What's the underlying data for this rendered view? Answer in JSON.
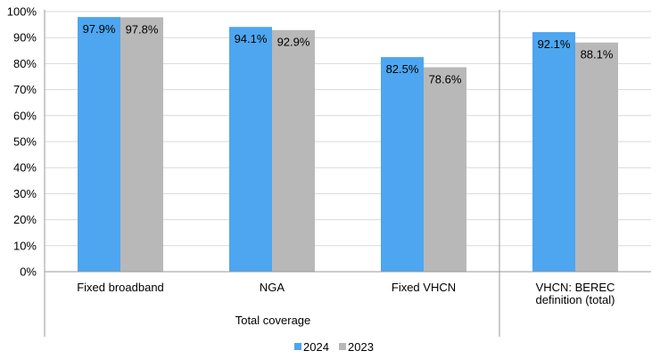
{
  "chart_data": {
    "type": "bar",
    "categories": [
      "Fixed broadband",
      "NGA",
      "Fixed VHCN",
      "VHCN: BEREC definition (total)"
    ],
    "category_lines": [
      [
        "Fixed broadband"
      ],
      [
        "NGA"
      ],
      [
        "Fixed VHCN"
      ],
      [
        "VHCN: BEREC",
        "definition (total)"
      ]
    ],
    "group_label": "Total coverage",
    "series": [
      {
        "name": "2024",
        "color": "#4da6ef",
        "values": [
          97.9,
          94.1,
          82.5,
          92.1
        ],
        "labels": [
          "97.9%",
          "94.1%",
          "82.5%",
          "92.1%"
        ]
      },
      {
        "name": "2023",
        "color": "#b8b8b8",
        "values": [
          97.8,
          92.9,
          78.6,
          88.1
        ],
        "labels": [
          "97.8%",
          "92.9%",
          "78.6%",
          "88.1%"
        ]
      }
    ],
    "y_ticks": [
      "0%",
      "10%",
      "20%",
      "30%",
      "40%",
      "50%",
      "60%",
      "70%",
      "80%",
      "90%",
      "100%"
    ],
    "ylim": [
      0,
      100
    ],
    "grid": true,
    "legend_position": "bottom"
  }
}
